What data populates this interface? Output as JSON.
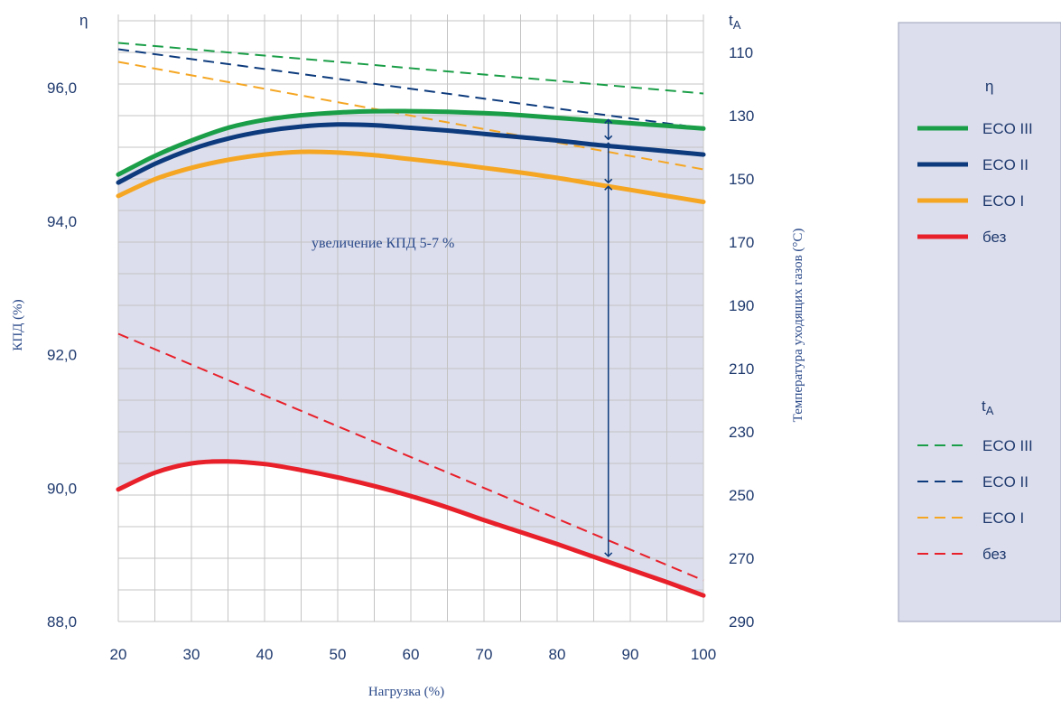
{
  "chart_data": {
    "type": "line",
    "xlabel": "Нагрузка (%)",
    "ylabel": "КПД (%)",
    "y2label": "Температура уходящих газов (°C)",
    "y_symbol": "η",
    "y2_symbol": "t",
    "y2_symbol_sub": "A",
    "x_ticks": [
      20,
      30,
      40,
      50,
      60,
      70,
      80,
      90,
      100
    ],
    "y_ticks": [
      "88,0",
      "90,0",
      "92,0",
      "94,0",
      "96,0"
    ],
    "y_tick_values": [
      88,
      90,
      92,
      94,
      96
    ],
    "y2_ticks": [
      110,
      130,
      150,
      170,
      190,
      210,
      230,
      250,
      270,
      290
    ],
    "xlim": [
      20,
      100
    ],
    "ylim": [
      88,
      97.1
    ],
    "y2lim": [
      290,
      98
    ],
    "grid": true,
    "colors": {
      "eco3": "#1a9e47",
      "eco2": "#0c3a7c",
      "eco1": "#f5a623",
      "bez": "#e8202a",
      "fill": "#dcdeed",
      "axis": "#1f3a6e"
    },
    "annotation": "увеличение КПД 5-7 %",
    "arrow": {
      "x": 87,
      "top": 95.55,
      "mid1": 95.2,
      "mid2": 94.55,
      "bottom": 88.95
    },
    "efficiency_series": [
      {
        "name": "ECO III",
        "color": "#1a9e47",
        "x": [
          20,
          25,
          30,
          35,
          40,
          45,
          50,
          55,
          60,
          65,
          70,
          75,
          80,
          85,
          90,
          95,
          100
        ],
        "y": [
          94.7,
          94.98,
          95.21,
          95.4,
          95.52,
          95.59,
          95.63,
          95.65,
          95.65,
          95.64,
          95.62,
          95.59,
          95.55,
          95.51,
          95.47,
          95.43,
          95.39
        ]
      },
      {
        "name": "ECO II",
        "color": "#0c3a7c",
        "x": [
          20,
          25,
          30,
          35,
          40,
          45,
          50,
          55,
          60,
          65,
          70,
          75,
          80,
          85,
          90,
          95,
          100
        ],
        "y": [
          94.58,
          94.86,
          95.08,
          95.24,
          95.35,
          95.42,
          95.45,
          95.44,
          95.4,
          95.36,
          95.31,
          95.26,
          95.21,
          95.15,
          95.1,
          95.05,
          95.0
        ]
      },
      {
        "name": "ECO I",
        "color": "#f5a623",
        "x": [
          20,
          25,
          30,
          35,
          40,
          45,
          50,
          55,
          60,
          65,
          70,
          75,
          80,
          85,
          90,
          95,
          100
        ],
        "y": [
          94.38,
          94.63,
          94.8,
          94.92,
          95.0,
          95.04,
          95.03,
          94.99,
          94.93,
          94.87,
          94.8,
          94.73,
          94.65,
          94.56,
          94.47,
          94.38,
          94.29
        ]
      },
      {
        "name": "без",
        "color": "#e8202a",
        "x": [
          20,
          25,
          30,
          35,
          40,
          45,
          50,
          55,
          60,
          65,
          70,
          75,
          80,
          85,
          90,
          95,
          100
        ],
        "y": [
          89.98,
          90.23,
          90.37,
          90.4,
          90.36,
          90.27,
          90.16,
          90.03,
          89.88,
          89.71,
          89.52,
          89.34,
          89.16,
          88.97,
          88.78,
          88.59,
          88.39
        ]
      }
    ],
    "temperature_series": [
      {
        "name": "ECO III",
        "color": "#1a9e47",
        "x": [
          20,
          100
        ],
        "y": [
          107,
          123
        ]
      },
      {
        "name": "ECO II",
        "color": "#0c3a7c",
        "x": [
          20,
          100
        ],
        "y": [
          109,
          134
        ]
      },
      {
        "name": "ECO I",
        "color": "#f5a623",
        "x": [
          20,
          100
        ],
        "y": [
          113,
          147
        ]
      },
      {
        "name": "без",
        "color": "#e8202a",
        "x": [
          20,
          100
        ],
        "y": [
          199,
          277
        ]
      }
    ],
    "legend": {
      "placement": "right",
      "efficiency_header": "η",
      "temperature_header": "t",
      "temperature_header_sub": "A",
      "efficiency_items": [
        "ECO III",
        "ECO II",
        "ECO I",
        "без"
      ],
      "temperature_items": [
        "ECO III",
        "ECO II",
        "ECO I",
        "без"
      ]
    }
  }
}
